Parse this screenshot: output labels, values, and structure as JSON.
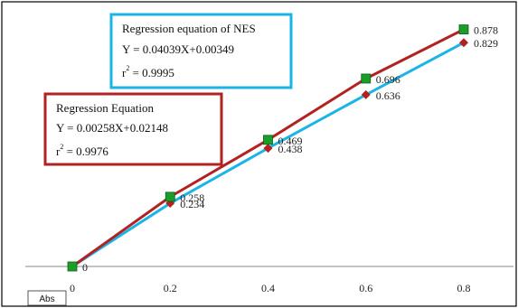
{
  "chart_data": {
    "type": "line",
    "x": [
      0,
      0.2,
      0.4,
      0.6,
      0.8
    ],
    "xticks": [
      "0",
      "0.2",
      "0.4",
      "0.6",
      "0.8"
    ],
    "xlim": [
      0,
      0.8
    ],
    "ylim": [
      0,
      0.9
    ],
    "grid": false,
    "ylabel": "Abs",
    "series": [
      {
        "values": [
          0,
          0.258,
          0.469,
          0.696,
          0.878
        ],
        "labels": [
          "0",
          "0.258",
          "0.469",
          "0.696",
          "0.878"
        ],
        "color": "#b22222",
        "marker": "square",
        "marker_color": "#1a9e2a"
      },
      {
        "values": [
          0,
          0.234,
          0.438,
          0.636,
          0.829
        ],
        "labels": [
          "",
          "0.234",
          "0.438",
          "0.636",
          "0.829"
        ],
        "color": "#1ab4e6",
        "marker": "diamond",
        "marker_color": "#b22222"
      }
    ],
    "annotations": [
      {
        "border_color": "#1ab4e6",
        "line1": "Regression equation of NES",
        "line2": "Y = 0.04039X+0.00349",
        "r_prefix": "r",
        "r_sup": "2",
        "r_value": " = 0.9995"
      },
      {
        "border_color": "#b22222",
        "line1": "Regression Equation",
        "line2": "Y = 0.00258X+0.02148",
        "r_prefix": "r",
        "r_sup": "2",
        "r_value": " = 0.9976"
      }
    ]
  }
}
